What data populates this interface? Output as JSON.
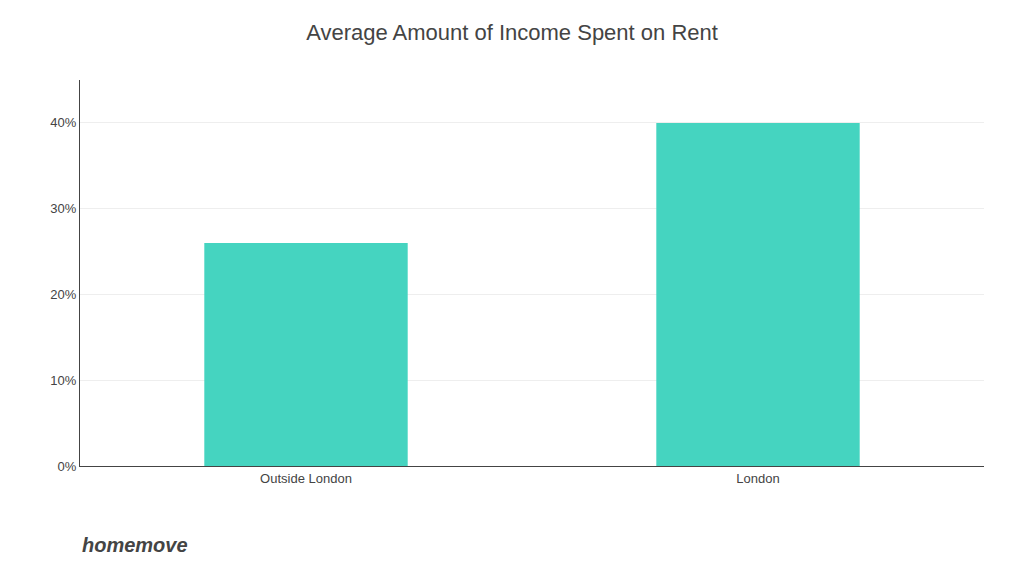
{
  "chart_data": {
    "type": "bar",
    "title": "Average Amount of Income Spent on Rent",
    "categories": [
      "Outside London",
      "London"
    ],
    "values": [
      26,
      40
    ],
    "color": "#45D4C0",
    "ylim": [
      0,
      45
    ],
    "yticks": [
      {
        "value": 0,
        "label": "0%"
      },
      {
        "value": 10,
        "label": "10%"
      },
      {
        "value": 20,
        "label": "20%"
      },
      {
        "value": 30,
        "label": "30%"
      },
      {
        "value": 40,
        "label": "40%"
      }
    ],
    "grid": true,
    "annotations": [
      "homemove"
    ]
  }
}
